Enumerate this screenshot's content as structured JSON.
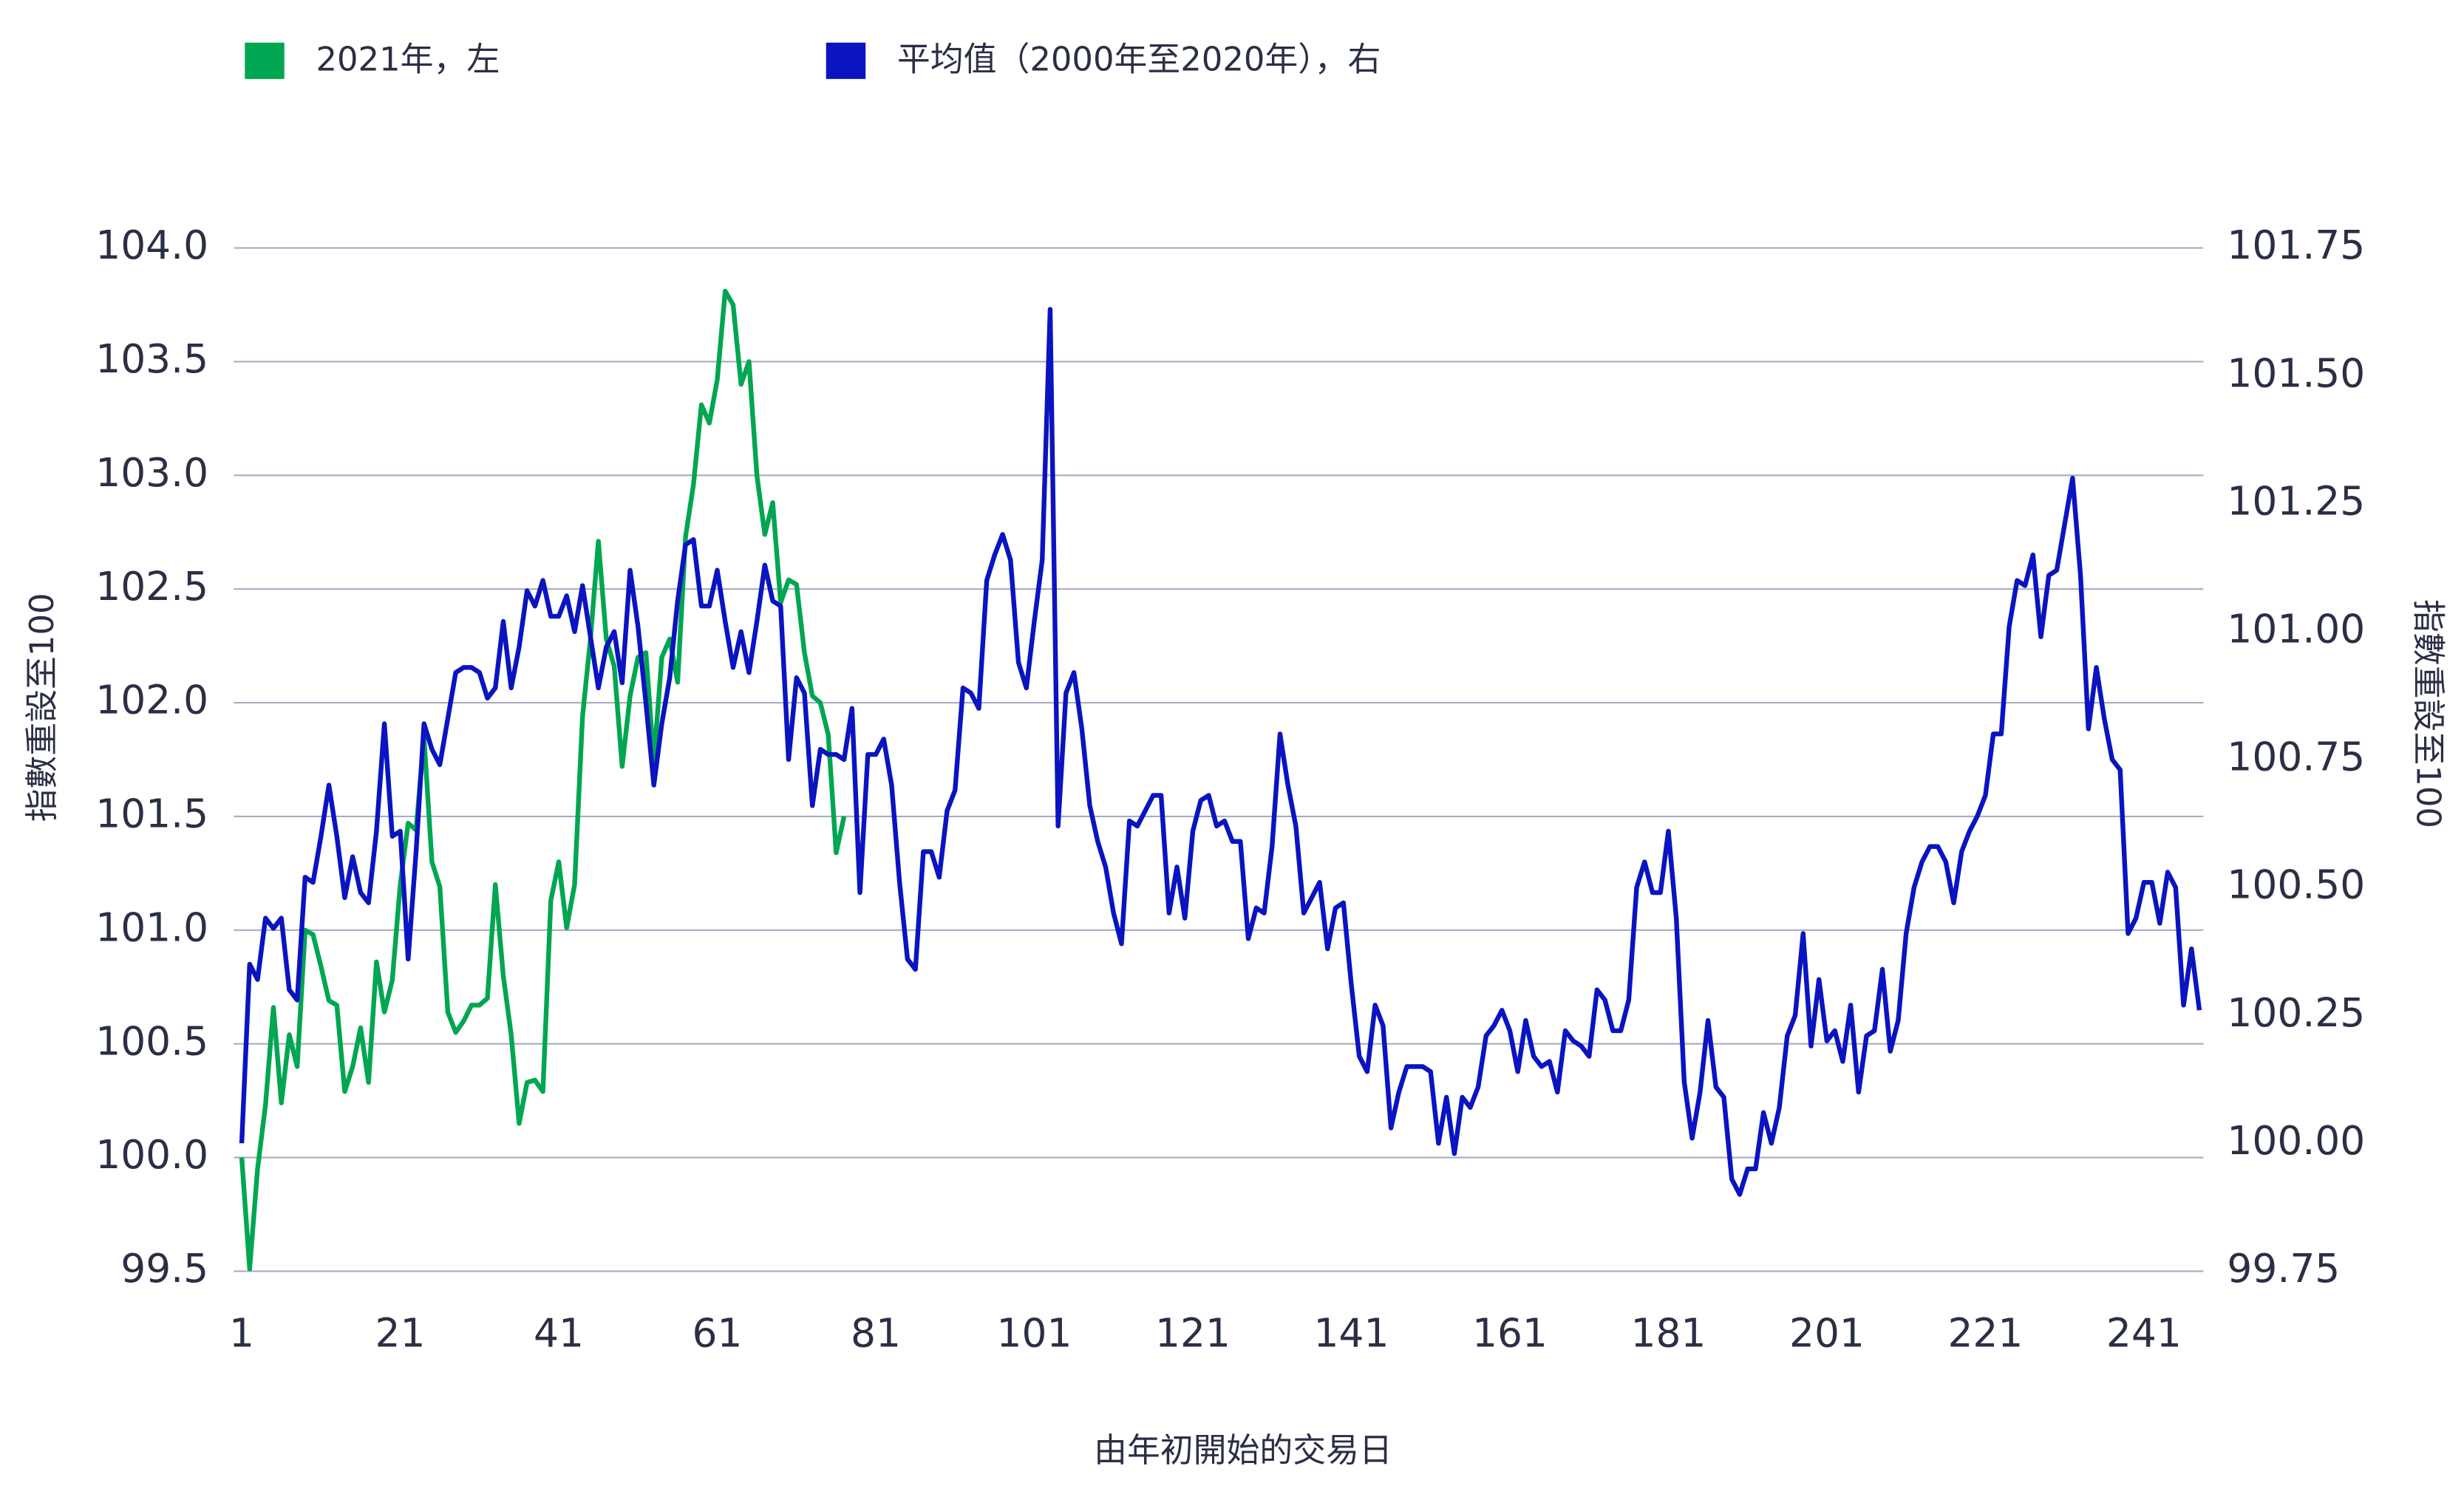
{
  "chart_data": {
    "type": "line",
    "xlabel": "由年初開始的交易日",
    "ylabel": "指數重設至100",
    "y2label": "指數重設至100",
    "xlim": [
      0,
      248.5
    ],
    "xticks": [
      1,
      21,
      41,
      61,
      81,
      101,
      121,
      141,
      161,
      181,
      201,
      221,
      241
    ],
    "ylim": [
      99.5,
      104
    ],
    "yticks": [
      99.5,
      {
        "value": 100,
        "label": "100.0"
      },
      100.5,
      {
        "value": 101,
        "label": "101.0"
      },
      101.5,
      {
        "value": 102,
        "label": "102.0"
      },
      102.5,
      {
        "value": 103,
        "label": "103.0"
      },
      103.5,
      {
        "value": 104,
        "label": "104.0"
      }
    ],
    "y2lim": [
      99.75,
      101.75
    ],
    "y2ticks": [
      99.75,
      {
        "value": 100,
        "label": "100.00"
      },
      100.25,
      {
        "value": 100.5,
        "label": "100.50"
      },
      100.75,
      {
        "value": 101,
        "label": "101.00"
      },
      101.25,
      {
        "value": 101.5,
        "label": "101.50"
      },
      101.75
    ],
    "grid": true,
    "legend": "top-left",
    "series": [
      {
        "name": "2021年，左",
        "color": "#00a651",
        "axis": "y",
        "x": [
          1,
          2,
          3,
          4,
          5,
          6,
          7,
          8,
          9,
          10,
          11,
          12,
          13,
          14,
          15,
          16,
          17,
          18,
          19,
          20,
          21,
          22,
          23,
          24,
          25,
          26,
          27,
          28,
          29,
          30,
          31,
          32,
          33,
          34,
          35,
          36,
          37,
          38,
          39,
          40,
          41,
          42,
          43,
          44,
          45,
          46,
          47,
          48,
          49,
          50,
          51,
          52,
          53,
          54,
          55,
          56,
          57,
          58,
          59,
          60,
          61,
          62,
          63,
          64,
          65,
          66,
          67,
          68,
          69,
          70,
          71,
          72,
          73,
          74,
          75,
          76,
          77
        ],
        "values": [
          100.0,
          99.51,
          99.95,
          100.23,
          100.66,
          100.24,
          100.54,
          100.4,
          101.0,
          100.98,
          100.84,
          100.69,
          100.67,
          100.29,
          100.4,
          100.57,
          100.33,
          100.86,
          100.64,
          100.78,
          101.2,
          101.47,
          101.44,
          101.85,
          101.3,
          101.19,
          100.64,
          100.55,
          100.6,
          100.67,
          100.67,
          100.7,
          101.2,
          100.8,
          100.54,
          100.15,
          100.33,
          100.34,
          100.29,
          101.13,
          101.3,
          101.01,
          101.2,
          101.94,
          102.28,
          102.71,
          102.28,
          102.16,
          101.72,
          102.03,
          102.2,
          102.22,
          101.74,
          102.2,
          102.28,
          102.09,
          102.73,
          102.96,
          103.31,
          103.23,
          103.42,
          103.81,
          103.75,
          103.4,
          103.5,
          103.0,
          102.74,
          102.88,
          102.44,
          102.54,
          102.52,
          102.22,
          102.03,
          102.0,
          101.86,
          101.34,
          101.5
        ]
      },
      {
        "name": "平均值（2000年至2020年），右",
        "color": "#0a14c0",
        "axis": "y2",
        "x": [
          1,
          2,
          3,
          4,
          5,
          6,
          7,
          8,
          9,
          10,
          11,
          12,
          13,
          14,
          15,
          16,
          17,
          18,
          19,
          20,
          21,
          22,
          23,
          24,
          25,
          26,
          27,
          28,
          29,
          30,
          31,
          32,
          33,
          34,
          35,
          36,
          37,
          38,
          39,
          40,
          41,
          42,
          43,
          44,
          45,
          46,
          47,
          48,
          49,
          50,
          51,
          52,
          53,
          54,
          55,
          56,
          57,
          58,
          59,
          60,
          61,
          62,
          63,
          64,
          65,
          66,
          67,
          68,
          69,
          70,
          71,
          72,
          73,
          74,
          75,
          76,
          77,
          78,
          79,
          80,
          81,
          82,
          83,
          84,
          85,
          86,
          87,
          88,
          89,
          90,
          91,
          92,
          93,
          94,
          95,
          96,
          97,
          98,
          99,
          100,
          101,
          102,
          103,
          104,
          105,
          106,
          107,
          108,
          109,
          110,
          111,
          112,
          113,
          114,
          115,
          116,
          117,
          118,
          119,
          120,
          121,
          122,
          123,
          124,
          125,
          126,
          127,
          128,
          129,
          130,
          131,
          132,
          133,
          134,
          135,
          136,
          137,
          138,
          139,
          140,
          141,
          142,
          143,
          144,
          145,
          146,
          147,
          148,
          149,
          150,
          151,
          152,
          153,
          154,
          155,
          156,
          157,
          158,
          159,
          160,
          161,
          162,
          163,
          164,
          165,
          166,
          167,
          168,
          169,
          170,
          171,
          172,
          173,
          174,
          175,
          176,
          177,
          178,
          179,
          180,
          181,
          182,
          183,
          184,
          185,
          186,
          187,
          188,
          189,
          190,
          191,
          192,
          193,
          194,
          195,
          196,
          197,
          198,
          199,
          200,
          201,
          202,
          203,
          204,
          205,
          206,
          207,
          208,
          209,
          210,
          211,
          212,
          213,
          214,
          215,
          216,
          217,
          218,
          219,
          220,
          221,
          222,
          223,
          224,
          225,
          226,
          227,
          228,
          229,
          230,
          231,
          232,
          233,
          234,
          235,
          236,
          237,
          238,
          239,
          240,
          241,
          242,
          243,
          244,
          245,
          246,
          247,
          248
        ],
        "values": [
          100.0,
          100.35,
          100.32,
          100.44,
          100.42,
          100.44,
          100.3,
          100.28,
          100.52,
          100.51,
          100.6,
          100.7,
          100.6,
          100.48,
          100.56,
          100.49,
          100.47,
          100.61,
          100.82,
          100.6,
          100.61,
          100.36,
          100.57,
          100.82,
          100.77,
          100.74,
          100.83,
          100.92,
          100.93,
          100.93,
          100.92,
          100.87,
          100.89,
          101.02,
          100.89,
          100.97,
          101.08,
          101.05,
          101.1,
          101.03,
          101.03,
          101.07,
          101.0,
          101.09,
          100.99,
          100.89,
          100.97,
          101.0,
          100.9,
          101.12,
          101.01,
          100.86,
          100.7,
          100.82,
          100.91,
          101.06,
          101.17,
          101.18,
          101.05,
          101.05,
          101.12,
          101.02,
          100.93,
          101.0,
          100.92,
          101.02,
          101.13,
          101.06,
          101.05,
          100.75,
          100.91,
          100.88,
          100.66,
          100.77,
          100.76,
          100.76,
          100.75,
          100.85,
          100.49,
          100.76,
          100.76,
          100.79,
          100.7,
          100.51,
          100.36,
          100.34,
          100.57,
          100.57,
          100.52,
          100.65,
          100.69,
          100.89,
          100.88,
          100.85,
          101.1,
          101.15,
          101.19,
          101.14,
          100.94,
          100.89,
          101.02,
          101.14,
          101.63,
          100.62,
          100.88,
          100.92,
          100.81,
          100.66,
          100.59,
          100.54,
          100.45,
          100.39,
          100.63,
          100.62,
          100.65,
          100.68,
          100.68,
          100.45,
          100.54,
          100.44,
          100.61,
          100.67,
          100.68,
          100.62,
          100.63,
          100.59,
          100.59,
          100.4,
          100.46,
          100.45,
          100.58,
          100.8,
          100.7,
          100.62,
          100.45,
          100.48,
          100.51,
          100.38,
          100.46,
          100.47,
          100.31,
          100.17,
          100.14,
          100.27,
          100.23,
          100.03,
          100.1,
          100.15,
          100.15,
          100.15,
          100.14,
          100.0,
          100.09,
          99.98,
          100.09,
          100.07,
          100.11,
          100.21,
          100.23,
          100.26,
          100.22,
          100.14,
          100.24,
          100.17,
          100.15,
          100.16,
          100.1,
          100.22,
          100.2,
          100.19,
          100.17,
          100.3,
          100.28,
          100.22,
          100.22,
          100.28,
          100.5,
          100.55,
          100.49,
          100.49,
          100.61,
          100.44,
          100.12,
          100.01,
          100.1,
          100.24,
          100.11,
          100.09,
          99.93,
          99.9,
          99.95,
          99.95,
          100.06,
          100.0,
          100.07,
          100.21,
          100.25,
          100.41,
          100.19,
          100.32,
          100.2,
          100.22,
          100.16,
          100.27,
          100.1,
          100.21,
          100.22,
          100.34,
          100.18,
          100.24,
          100.41,
          100.5,
          100.55,
          100.58,
          100.58,
          100.55,
          100.47,
          100.57,
          100.61,
          100.64,
          100.68,
          100.8,
          100.8,
          101.01,
          101.1,
          101.09,
          101.15,
          100.99,
          101.11,
          101.12,
          101.21,
          101.3,
          101.11,
          100.81,
          100.93,
          100.83,
          100.75,
          100.73,
          100.41,
          100.44,
          100.51,
          100.51,
          100.43,
          100.53,
          100.5,
          100.27,
          100.38,
          100.26
        ]
      }
    ]
  }
}
